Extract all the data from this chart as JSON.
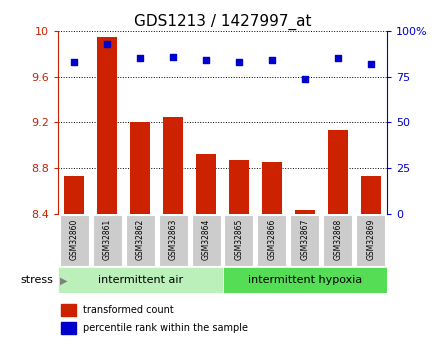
{
  "title": "GDS1213 / 1427997_at",
  "samples": [
    "GSM32860",
    "GSM32861",
    "GSM32862",
    "GSM32863",
    "GSM32864",
    "GSM32865",
    "GSM32866",
    "GSM32867",
    "GSM32868",
    "GSM32869"
  ],
  "bar_values": [
    8.73,
    9.95,
    9.2,
    9.25,
    8.92,
    8.87,
    8.85,
    8.43,
    9.13,
    8.73
  ],
  "dot_values": [
    83,
    93,
    85,
    86,
    84,
    83,
    84,
    74,
    85,
    82
  ],
  "bar_color": "#cc2200",
  "dot_color": "#0000cc",
  "ylim_left": [
    8.4,
    10.0
  ],
  "ylim_right": [
    0,
    100
  ],
  "yticks_left": [
    8.4,
    8.8,
    9.2,
    9.6,
    10.0
  ],
  "ytick_labels_left": [
    "8.4",
    "8.8",
    "9.2",
    "9.6",
    "10"
  ],
  "yticks_right": [
    0,
    25,
    50,
    75,
    100
  ],
  "ytick_labels_right": [
    "0",
    "25",
    "50",
    "75",
    "100%"
  ],
  "group1_label": "intermittent air",
  "group2_label": "intermittent hypoxia",
  "group1_indices": [
    0,
    1,
    2,
    3,
    4
  ],
  "group2_indices": [
    5,
    6,
    7,
    8,
    9
  ],
  "stress_label": "stress",
  "legend_bar_label": "transformed count",
  "legend_dot_label": "percentile rank within the sample",
  "group_bg_color1": "#bbf0bb",
  "group_bg_color2": "#55dd55",
  "tick_label_bg": "#cccccc"
}
